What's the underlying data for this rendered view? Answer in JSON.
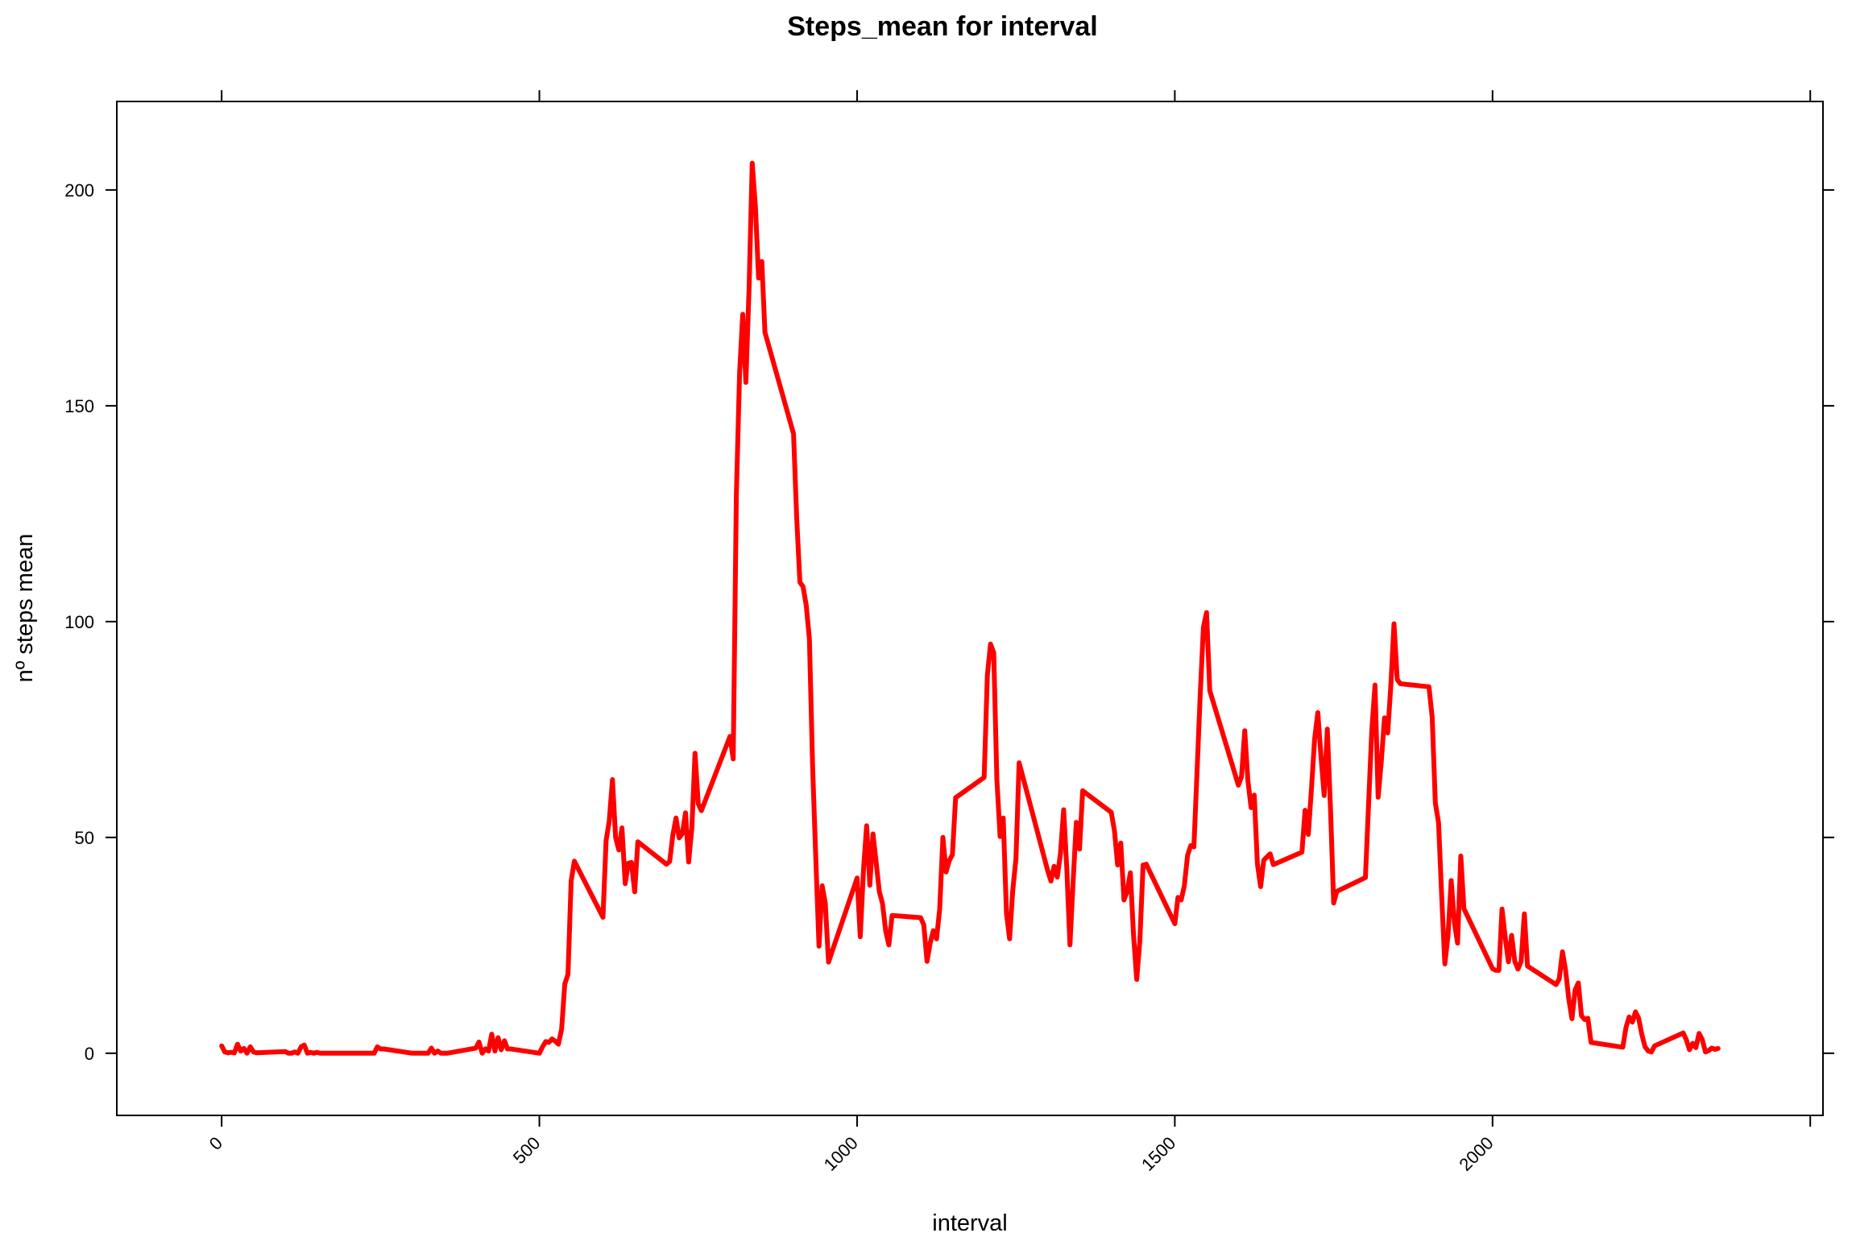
{
  "chart_data": {
    "type": "line",
    "title": "Steps_mean for interval",
    "xlabel": "interval",
    "ylabel": "nº steps mean",
    "xlim": [
      -165,
      2520
    ],
    "ylim": [
      -14.4,
      220.5
    ],
    "xticks": [
      0,
      500,
      1000,
      1500,
      2000
    ],
    "yticks": [
      0,
      50,
      100,
      150,
      200
    ],
    "grid": false,
    "legend": "none",
    "color": "#ff0000",
    "series": [
      {
        "x": [
          0,
          5,
          10,
          15,
          20,
          25,
          30,
          35,
          40,
          45,
          50,
          55,
          100,
          105,
          110,
          115,
          120,
          125,
          130,
          135,
          140,
          145,
          150,
          155,
          200,
          205,
          210,
          215,
          220,
          225,
          230,
          235,
          240,
          245,
          250,
          255,
          300,
          305,
          310,
          315,
          320,
          325,
          330,
          335,
          340,
          345,
          350,
          355,
          400,
          405,
          410,
          415,
          420,
          425,
          430,
          435,
          440,
          445,
          450,
          455,
          500,
          505,
          510,
          515,
          520,
          525,
          530,
          535,
          540,
          545,
          550,
          555,
          600,
          605,
          610,
          615,
          620,
          625,
          630,
          635,
          640,
          645,
          650,
          655,
          700,
          705,
          710,
          715,
          720,
          725,
          730,
          735,
          740,
          745,
          750,
          755,
          800,
          805,
          810,
          815,
          820,
          825,
          830,
          835,
          840,
          845,
          850,
          855,
          900,
          905,
          910,
          915,
          920,
          925,
          930,
          935,
          940,
          945,
          950,
          955,
          1000,
          1005,
          1010,
          1015,
          1020,
          1025,
          1030,
          1035,
          1040,
          1045,
          1050,
          1055,
          1100,
          1105,
          1110,
          1115,
          1120,
          1125,
          1130,
          1135,
          1140,
          1145,
          1150,
          1155,
          1200,
          1205,
          1210,
          1215,
          1220,
          1225,
          1230,
          1235,
          1240,
          1245,
          1250,
          1255,
          1300,
          1305,
          1310,
          1315,
          1320,
          1325,
          1330,
          1335,
          1340,
          1345,
          1350,
          1355,
          1400,
          1405,
          1410,
          1415,
          1420,
          1425,
          1430,
          1435,
          1440,
          1445,
          1450,
          1455,
          1500,
          1505,
          1510,
          1515,
          1520,
          1525,
          1530,
          1535,
          1540,
          1545,
          1550,
          1555,
          1600,
          1605,
          1610,
          1615,
          1620,
          1625,
          1630,
          1635,
          1640,
          1645,
          1650,
          1655,
          1700,
          1705,
          1710,
          1715,
          1720,
          1725,
          1730,
          1735,
          1740,
          1745,
          1750,
          1755,
          1800,
          1805,
          1810,
          1815,
          1820,
          1825,
          1830,
          1835,
          1840,
          1845,
          1850,
          1855,
          1900,
          1905,
          1910,
          1915,
          1920,
          1925,
          1930,
          1935,
          1940,
          1945,
          1950,
          1955,
          2000,
          2005,
          2010,
          2015,
          2020,
          2025,
          2030,
          2035,
          2040,
          2045,
          2050,
          2055,
          2100,
          2105,
          2110,
          2115,
          2120,
          2125,
          2130,
          2135,
          2140,
          2145,
          2150,
          2155,
          2200,
          2205,
          2210,
          2215,
          2220,
          2225,
          2230,
          2235,
          2240,
          2245,
          2250,
          2255,
          2300,
          2305,
          2310,
          2315,
          2320,
          2325,
          2330,
          2335,
          2340,
          2345,
          2350,
          2355
        ],
        "y": [
          1.7,
          0.3,
          0.1,
          0.2,
          0.1,
          2.1,
          0.5,
          1.1,
          0.0,
          1.5,
          0.3,
          0.1,
          0.4,
          0.0,
          0.0,
          0.3,
          0.0,
          1.5,
          1.9,
          0.0,
          0.2,
          0.0,
          0.2,
          0.0,
          0.0,
          0.0,
          0.0,
          0.0,
          0.0,
          0.0,
          0.0,
          0.0,
          0.0,
          1.5,
          1.0,
          1.0,
          0.0,
          0.0,
          0.0,
          0.0,
          0.0,
          0.0,
          1.2,
          0.0,
          0.5,
          0.0,
          0.0,
          0.0,
          1.2,
          2.6,
          0.0,
          1.0,
          0.5,
          4.4,
          0.5,
          3.6,
          0.8,
          2.9,
          1.0,
          1.0,
          0.0,
          1.5,
          2.7,
          2.5,
          3.3,
          2.8,
          2.1,
          5.6,
          16.0,
          18.3,
          39.9,
          44.5,
          31.5,
          49.3,
          53.8,
          63.4,
          50.0,
          47.1,
          52.2,
          39.3,
          44.0,
          44.2,
          37.4,
          49.0,
          43.8,
          44.4,
          50.5,
          54.5,
          49.9,
          50.9,
          55.7,
          44.3,
          52.3,
          69.5,
          57.8,
          56.2,
          73.4,
          68.2,
          129.4,
          157.5,
          171.2,
          155.4,
          177.3,
          206.2,
          196.0,
          179.6,
          183.4,
          167.0,
          143.5,
          124.0,
          109.1,
          108.1,
          103.7,
          95.9,
          66.2,
          45.2,
          24.8,
          38.8,
          34.8,
          21.1,
          40.6,
          27.0,
          42.4,
          52.7,
          38.9,
          50.8,
          44.3,
          37.4,
          34.7,
          28.3,
          25.1,
          31.9,
          31.4,
          29.7,
          21.3,
          25.5,
          28.4,
          26.5,
          33.4,
          50.0,
          42.0,
          44.6,
          46.0,
          59.2,
          63.9,
          87.6,
          94.8,
          92.8,
          63.4,
          50.2,
          54.5,
          32.4,
          26.5,
          37.7,
          45.1,
          67.3,
          42.3,
          39.9,
          43.3,
          40.8,
          46.2,
          56.4,
          42.8,
          25.1,
          39.9,
          53.5,
          47.3,
          60.8,
          55.8,
          51.5,
          43.6,
          48.7,
          35.5,
          37.5,
          41.8,
          27.5,
          17.1,
          26.1,
          43.6,
          43.8,
          30.0,
          36.1,
          35.5,
          38.8,
          45.8,
          48.1,
          47.8,
          65.3,
          82.9,
          98.7,
          102.1,
          84.0,
          62.1,
          64.1,
          74.7,
          63.2,
          56.9,
          59.8,
          43.9,
          38.6,
          44.7,
          45.5,
          46.2,
          43.7,
          46.6,
          56.3,
          50.7,
          61.2,
          72.7,
          78.9,
          68.9,
          59.7,
          75.1,
          56.5,
          34.8,
          37.5,
          40.7,
          58.0,
          74.7,
          85.3,
          59.3,
          67.8,
          77.7,
          74.2,
          85.3,
          99.5,
          86.6,
          85.6,
          84.9,
          77.8,
          58.0,
          53.4,
          36.3,
          20.7,
          27.4,
          40.0,
          30.2,
          25.5,
          45.7,
          33.5,
          19.6,
          19.2,
          19.2,
          33.4,
          26.8,
          21.2,
          27.3,
          21.3,
          19.5,
          21.3,
          32.3,
          20.2,
          15.9,
          17.2,
          23.5,
          19.2,
          12.5,
          8.0,
          14.7,
          16.3,
          8.7,
          7.8,
          8.1,
          2.5,
          1.5,
          1.4,
          6.0,
          8.4,
          7.2,
          9.6,
          8.1,
          4.3,
          1.5,
          0.5,
          0.3,
          1.7,
          4.7,
          3.1,
          0.8,
          2.3,
          1.3,
          4.6,
          3.2,
          0.3,
          0.6,
          1.2,
          0.9,
          1.1
        ]
      }
    ]
  }
}
